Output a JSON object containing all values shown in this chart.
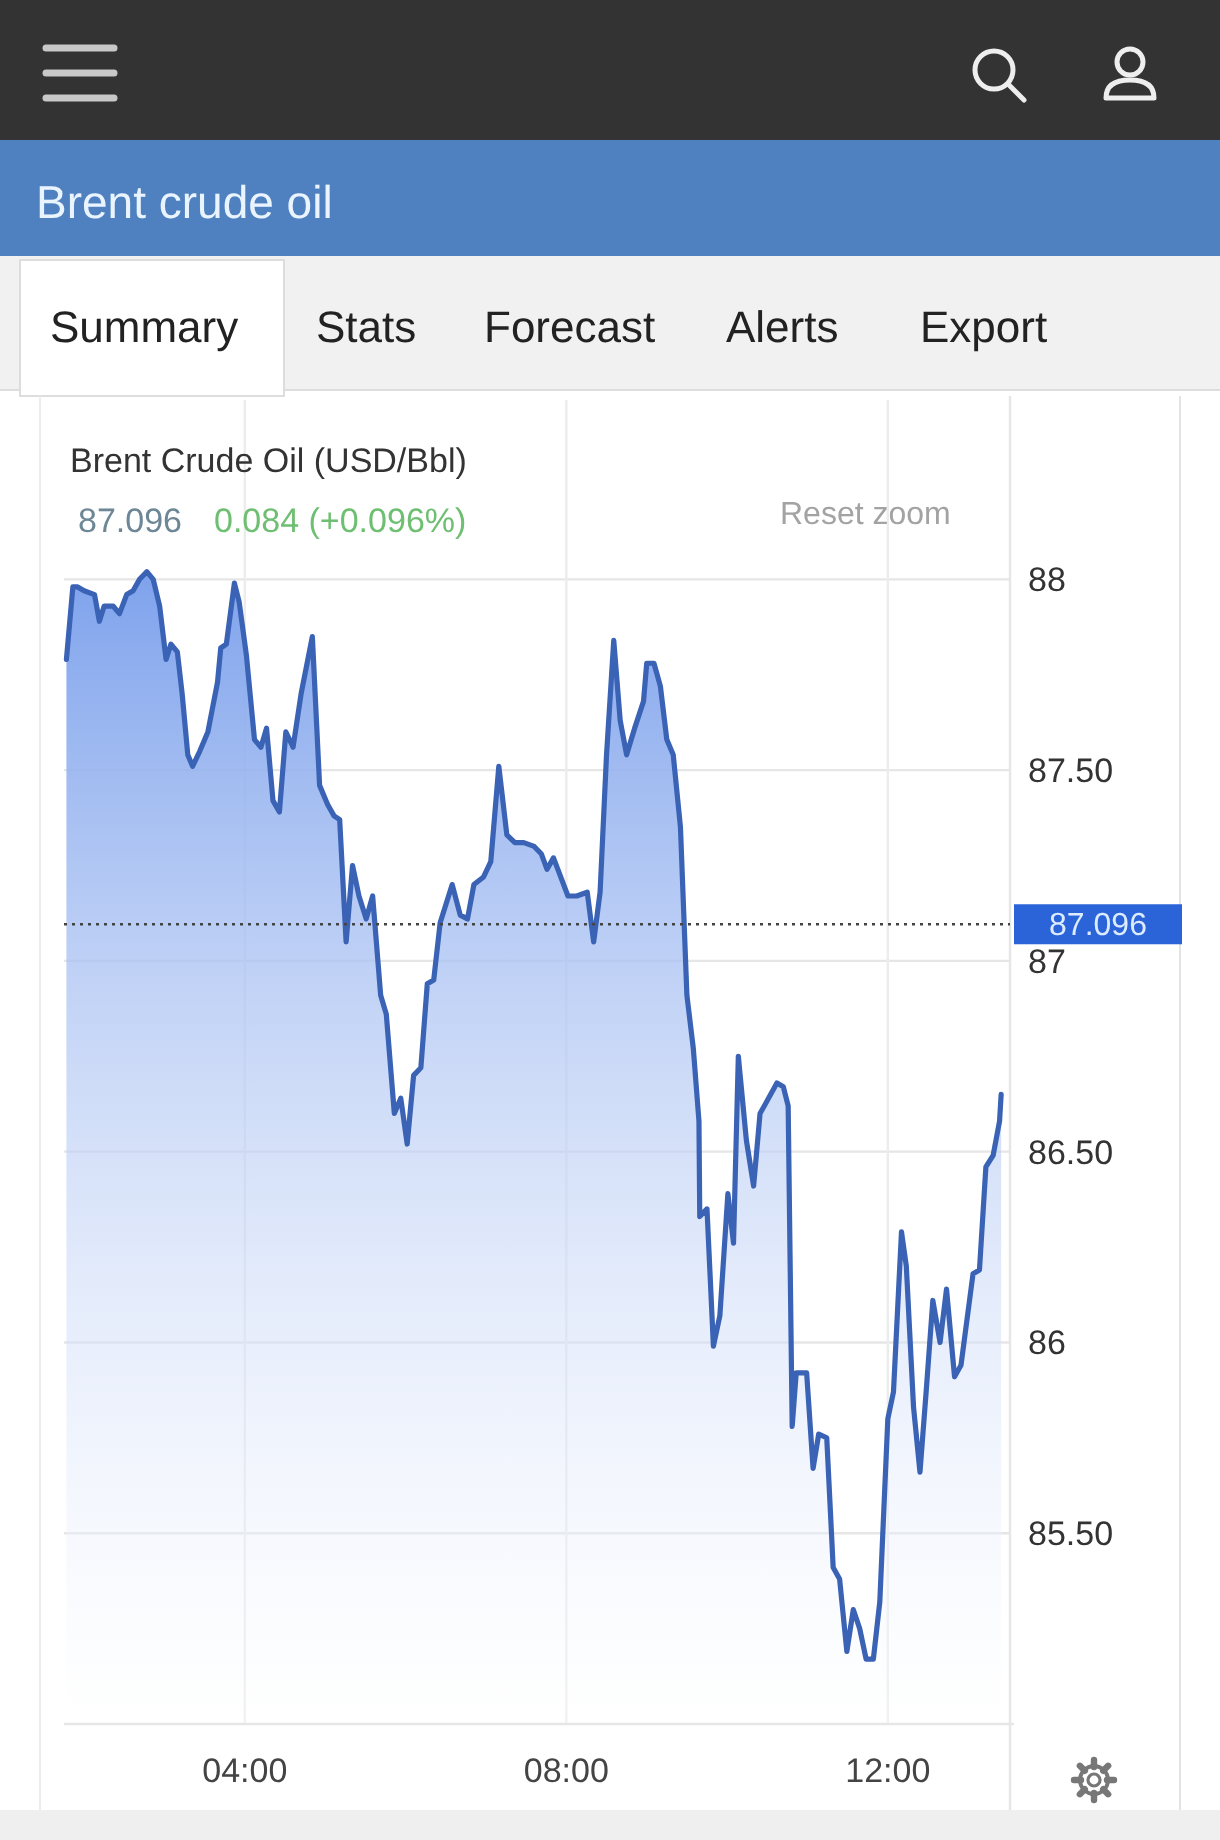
{
  "chart_data": {
    "type": "area",
    "title": "Brent Crude Oil (USD/Bbl)",
    "annotations": [
      "Brent crude oil",
      "Summary",
      "Stats",
      "Forecast",
      "Alerts",
      "Export",
      "87.096",
      "0.084 (+0.096%)",
      "Reset zoom"
    ],
    "x": [
      1.78,
      1.86,
      1.92,
      2.0,
      2.13,
      2.19,
      2.25,
      2.36,
      2.44,
      2.53,
      2.61,
      2.69,
      2.78,
      2.86,
      2.94,
      3.02,
      3.08,
      3.16,
      3.22,
      3.29,
      3.35,
      3.44,
      3.54,
      3.66,
      3.7,
      3.77,
      3.87,
      3.93,
      4.02,
      4.12,
      4.2,
      4.27,
      4.35,
      4.43,
      4.51,
      4.6,
      4.7,
      4.84,
      4.93,
      5.03,
      5.11,
      5.18,
      5.26,
      5.34,
      5.42,
      5.51,
      5.59,
      5.69,
      5.76,
      5.86,
      5.94,
      6.02,
      6.1,
      6.19,
      6.27,
      6.35,
      6.43,
      6.58,
      6.68,
      6.77,
      6.85,
      6.97,
      7.06,
      7.16,
      7.26,
      7.36,
      7.47,
      7.6,
      7.69,
      7.76,
      7.84,
      7.93,
      8.02,
      8.13,
      8.26,
      8.34,
      8.42,
      8.5,
      8.59,
      8.67,
      8.75,
      8.85,
      8.96,
      9.0,
      9.09,
      9.17,
      9.25,
      9.33,
      9.42,
      9.5,
      9.58,
      9.65,
      9.66,
      9.75,
      9.83,
      9.91,
      10.01,
      10.08,
      10.14,
      10.24,
      10.33,
      10.41,
      10.49,
      10.62,
      10.7,
      10.76,
      10.81,
      10.86,
      10.99,
      11.07,
      11.14,
      11.24,
      11.32,
      11.4,
      11.49,
      11.57,
      11.65,
      11.73,
      11.82,
      11.9,
      12.0,
      12.07,
      12.17,
      12.23,
      12.32,
      12.4,
      12.48,
      12.56,
      12.65,
      12.73,
      12.83,
      12.91,
      13.06,
      13.14,
      13.22,
      13.31,
      13.39,
      13.41
    ],
    "series": [
      {
        "color": "#3a62b5",
        "values": [
          87.79,
          87.98,
          87.98,
          87.97,
          87.96,
          87.89,
          87.93,
          87.93,
          87.91,
          87.96,
          87.97,
          88.0,
          88.02,
          88.0,
          87.93,
          87.79,
          87.83,
          87.81,
          87.7,
          87.54,
          87.51,
          87.55,
          87.6,
          87.73,
          87.82,
          87.83,
          87.99,
          87.94,
          87.8,
          87.58,
          87.56,
          87.61,
          87.42,
          87.39,
          87.6,
          87.56,
          87.7,
          87.85,
          87.46,
          87.41,
          87.38,
          87.37,
          87.05,
          87.25,
          87.17,
          87.11,
          87.17,
          86.91,
          86.86,
          86.6,
          86.64,
          86.52,
          86.7,
          86.72,
          86.94,
          86.95,
          87.1,
          87.2,
          87.12,
          87.11,
          87.2,
          87.22,
          87.26,
          87.51,
          87.33,
          87.31,
          87.31,
          87.3,
          87.28,
          87.24,
          87.27,
          87.22,
          87.17,
          87.17,
          87.18,
          87.05,
          87.18,
          87.54,
          87.84,
          87.63,
          87.54,
          87.61,
          87.68,
          87.78,
          87.78,
          87.72,
          87.58,
          87.54,
          87.35,
          86.91,
          86.77,
          86.58,
          86.33,
          86.35,
          85.99,
          86.07,
          86.39,
          86.26,
          86.75,
          86.53,
          86.41,
          86.6,
          86.63,
          86.68,
          86.67,
          86.62,
          85.78,
          85.92,
          85.92,
          85.67,
          85.76,
          85.75,
          85.41,
          85.38,
          85.19,
          85.3,
          85.25,
          85.17,
          85.17,
          85.32,
          85.8,
          85.87,
          86.29,
          86.2,
          85.83,
          85.66,
          85.88,
          86.11,
          86.0,
          86.14,
          85.91,
          85.94,
          86.18,
          86.19,
          86.46,
          86.49,
          86.58,
          86.65
        ]
      }
    ],
    "xlim": [
      1.75,
      13.52
    ],
    "xticks": [
      {
        "value": 4,
        "label": "04:00"
      },
      {
        "value": 8,
        "label": "08:00"
      },
      {
        "value": 12,
        "label": "12:00"
      }
    ],
    "ylim": [
      85,
      88.47
    ],
    "yticks": [
      88,
      {
        "value": 87.5,
        "label": "87.50"
      },
      87,
      {
        "value": 86.5,
        "label": "86.50"
      },
      86,
      {
        "value": 85.5,
        "label": "85.50"
      }
    ],
    "grid": true,
    "ref_lines": [
      {
        "axis": "y",
        "value": 87.096,
        "label": "87.096",
        "line_style": "dotted"
      }
    ]
  }
}
